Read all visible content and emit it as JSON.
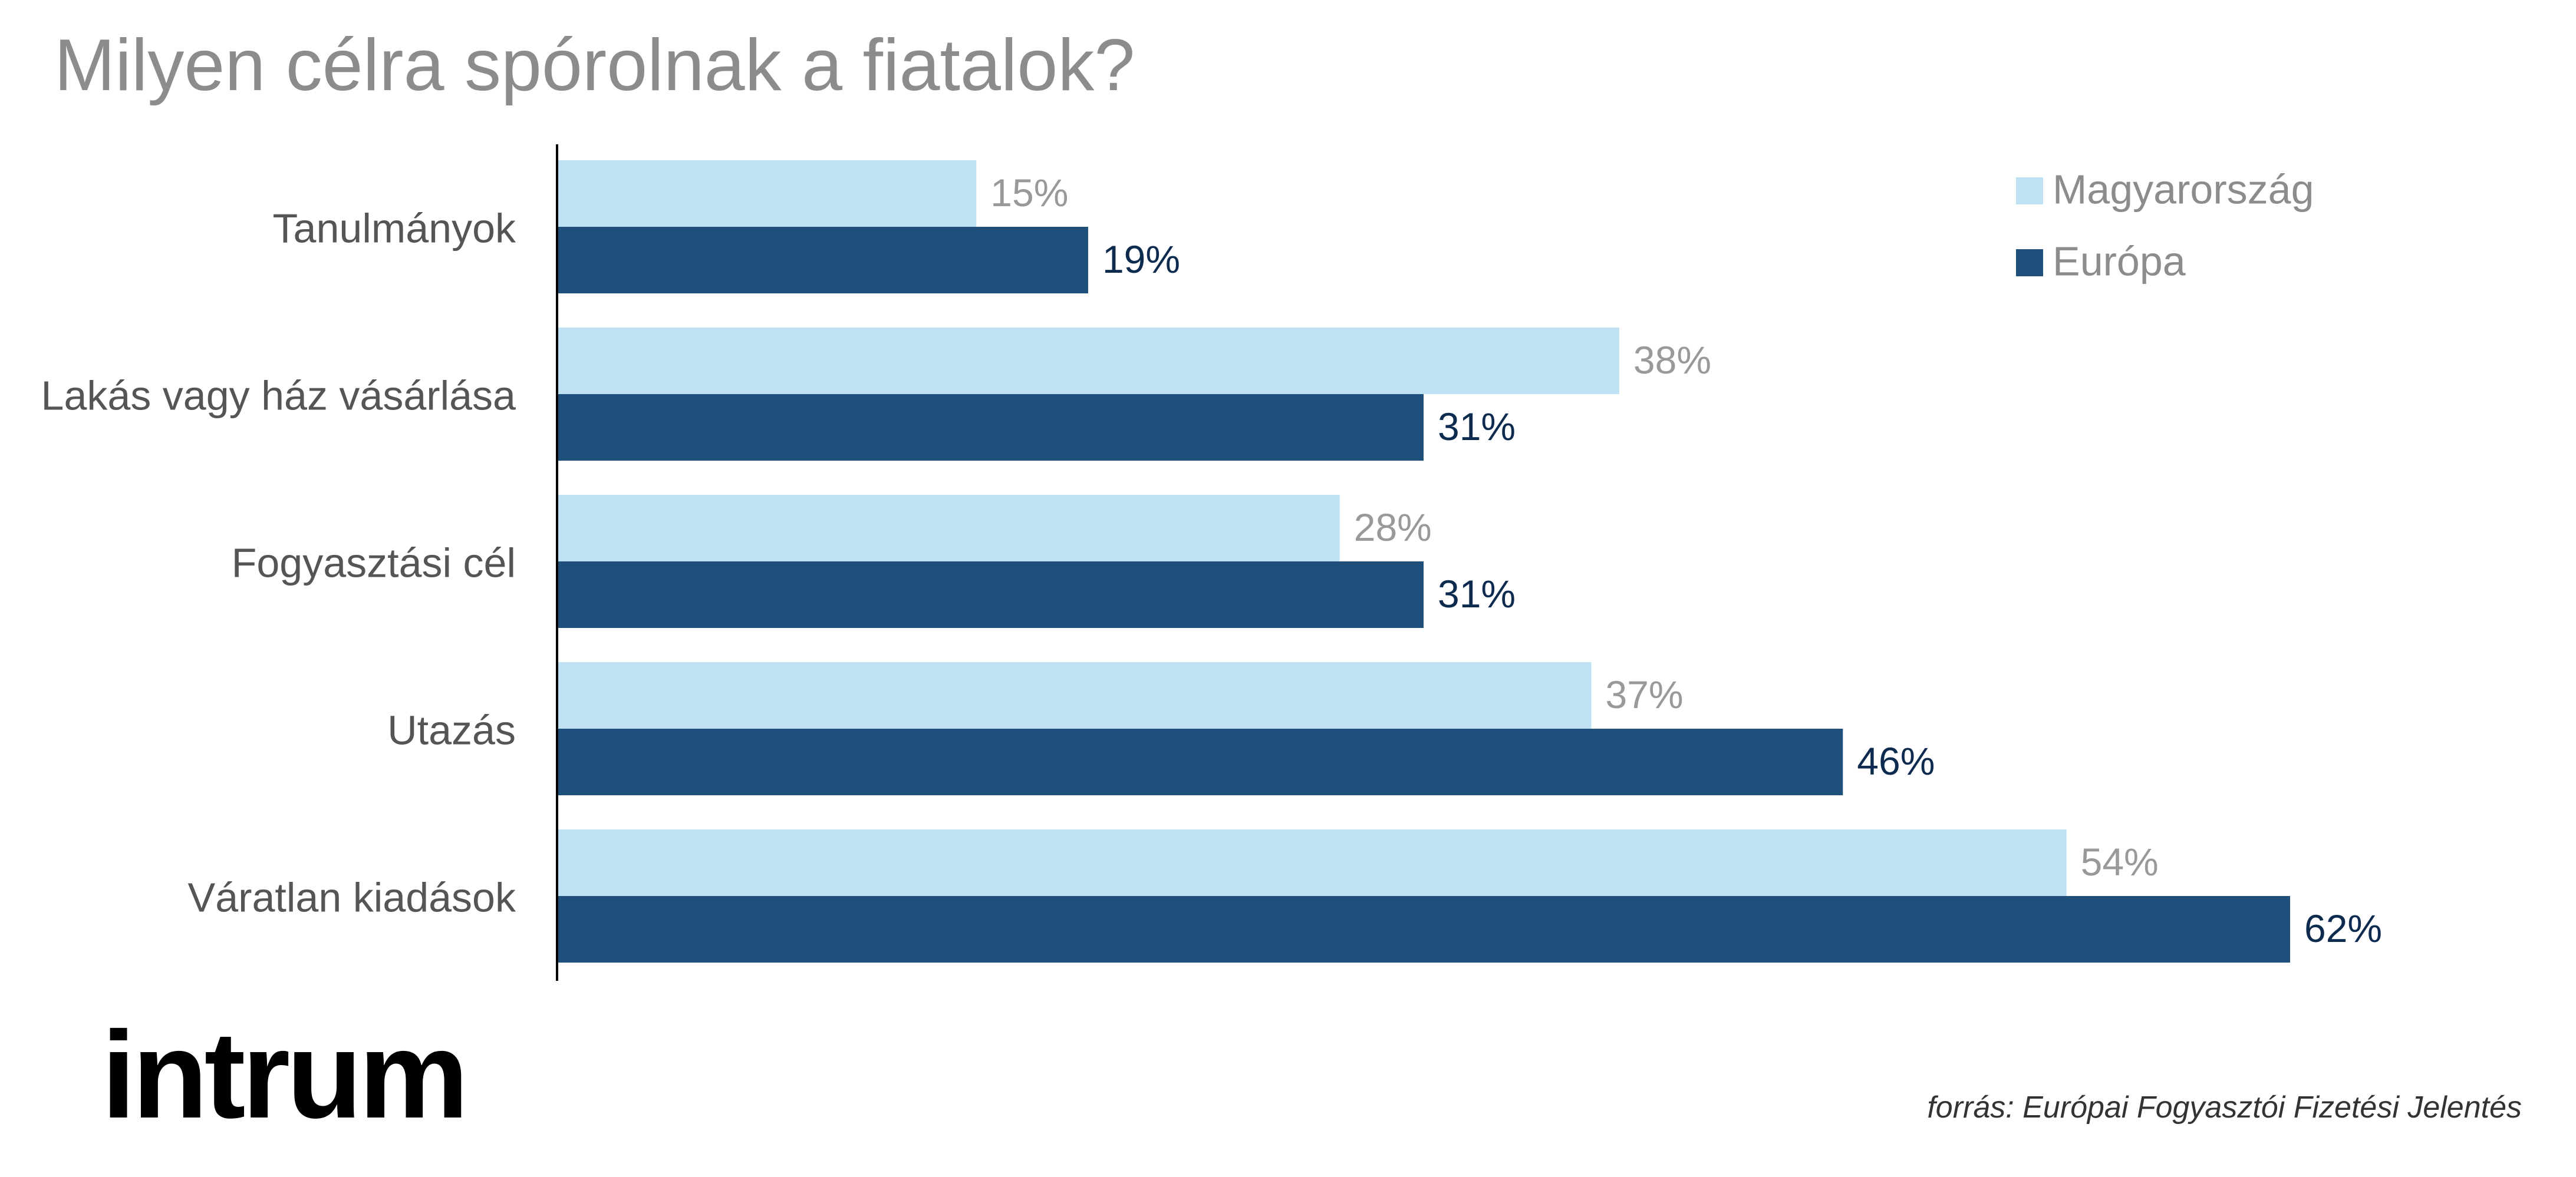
{
  "chart_data": {
    "type": "bar",
    "orientation": "horizontal",
    "title": "Milyen célra spórolnak a fiatalok?",
    "categories": [
      "Tanulmányok",
      "Lakás vagy ház vásárlása",
      "Fogyasztási cél",
      "Utazás",
      "Váratlan kiadások"
    ],
    "series": [
      {
        "name": "Magyarország",
        "values": [
          15,
          38,
          28,
          37,
          54
        ],
        "color": "#bfe1f4",
        "label_color": "#999999"
      },
      {
        "name": "Európa",
        "values": [
          19,
          31,
          31,
          46,
          62
        ],
        "color": "#1f4f7b",
        "label_color": "#0d2a4f"
      }
    ],
    "value_suffix": "%",
    "xlim": [
      0,
      62
    ],
    "grid": false,
    "legend": "top-right",
    "data_labels": true
  },
  "footer": {
    "logo_text": "intrum",
    "source": "forrás: Európai Fogyasztói Fizetési Jelentés"
  }
}
